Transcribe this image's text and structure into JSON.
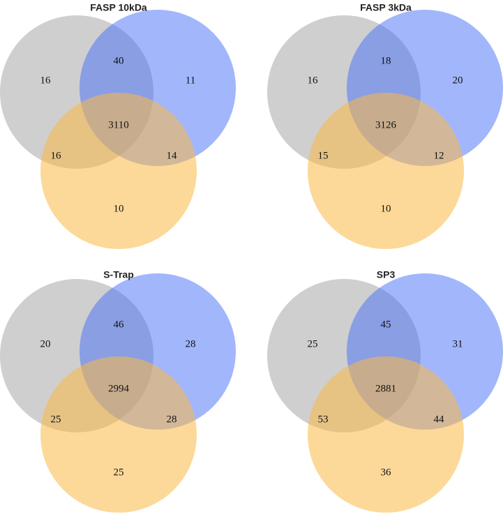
{
  "panels": [
    {
      "title": "FASP 10kDa",
      "counts": [
        "16",
        "40",
        "11",
        "3110",
        "16",
        "14",
        "10"
      ]
    },
    {
      "title": "FASP 3kDa",
      "counts": [
        "16",
        "18",
        "20",
        "3126",
        "15",
        "12",
        "10"
      ]
    },
    {
      "title": "S-Trap",
      "counts": [
        "20",
        "46",
        "28",
        "2994",
        "25",
        "28",
        "25"
      ]
    },
    {
      "title": "SP3",
      "counts": [
        "25",
        "45",
        "31",
        "2881",
        "53",
        "44",
        "36"
      ]
    }
  ]
}
